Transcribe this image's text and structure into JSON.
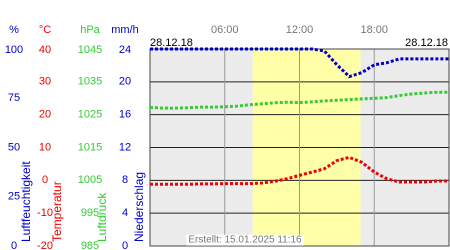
{
  "chart_data": {
    "type": "line",
    "date_left": "28.12.18",
    "date_right": "28.12.18",
    "footer": "Erstellt: 15.01.2025 11:16",
    "xlim": [
      0,
      24
    ],
    "xticks": [
      {
        "value": 6,
        "label": "06:00"
      },
      {
        "value": 12,
        "label": "12:00"
      },
      {
        "value": 18,
        "label": "18:00"
      }
    ],
    "daylight": [
      8.25,
      16.9
    ],
    "grid": true,
    "axes": [
      {
        "unit": "%",
        "name": "Luftfeuchtigkeit",
        "color": "#0000cc",
        "lim": [
          0,
          100
        ],
        "ticks": [
          100,
          75,
          50,
          25,
          0
        ]
      },
      {
        "unit": "°C",
        "name": "Temperatur",
        "color": "#ee0000",
        "lim": [
          -20,
          40
        ],
        "ticks": [
          40,
          30,
          20,
          10,
          0,
          -10,
          -20
        ]
      },
      {
        "unit": "hPa",
        "name": "Luftdruck",
        "color": "#33cc33",
        "lim": [
          985,
          1045
        ],
        "ticks": [
          1045,
          1035,
          1025,
          1015,
          1005,
          995,
          985
        ]
      },
      {
        "unit": "mm/h",
        "name": "Niederschlag",
        "color": "#0000cc",
        "lim": [
          0,
          24
        ],
        "ticks": [
          24,
          20,
          16,
          12,
          8,
          4,
          0
        ]
      }
    ],
    "x": [
      0,
      1,
      2,
      3,
      4,
      5,
      6,
      7,
      8,
      9,
      10,
      11,
      12,
      13,
      14,
      15,
      16,
      17,
      18,
      19,
      20,
      21,
      22,
      23,
      24
    ],
    "series": [
      {
        "axis": 0,
        "color": "#0000cc",
        "values": [
          100,
          100,
          100,
          100,
          100,
          100,
          100,
          100,
          100,
          100,
          100,
          100,
          100,
          100,
          99,
          92,
          86,
          88,
          92,
          93,
          95,
          95,
          95,
          95,
          95
        ]
      },
      {
        "axis": 1,
        "color": "#ee0000",
        "values": [
          -1.2,
          -1.2,
          -1.2,
          -1.2,
          -1.1,
          -1.1,
          -1,
          -1,
          -1,
          -0.8,
          -0.3,
          0.5,
          1.5,
          2.5,
          3.5,
          6,
          7,
          5.5,
          2.5,
          0.5,
          -0.5,
          -0.5,
          -0.5,
          -0.2,
          -0.2
        ]
      },
      {
        "axis": 2,
        "color": "#33cc33",
        "values": [
          1027.2,
          1027,
          1027,
          1027.1,
          1027.3,
          1027.3,
          1027.4,
          1027.6,
          1028,
          1028.3,
          1028.6,
          1028.8,
          1028.7,
          1028.9,
          1029.2,
          1029.4,
          1029.6,
          1029.8,
          1030,
          1030.2,
          1030.8,
          1031.3,
          1031.6,
          1031.8,
          1031.8
        ]
      }
    ]
  }
}
